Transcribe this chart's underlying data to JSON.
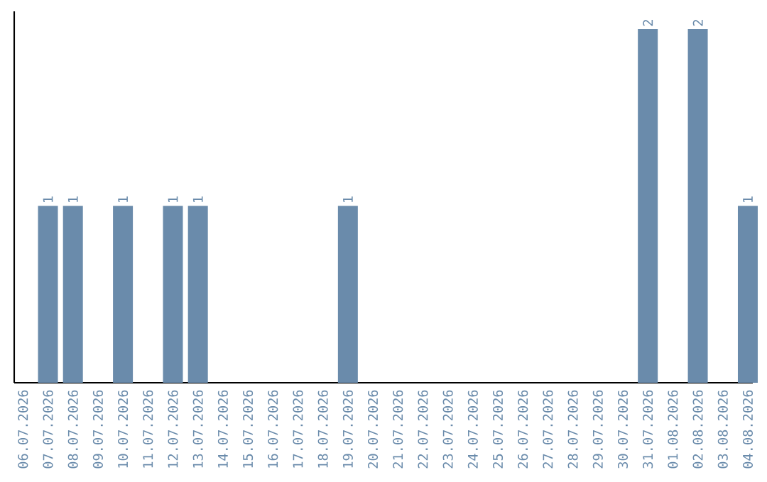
{
  "chart_data": {
    "type": "bar",
    "categories": [
      "06.07.2026",
      "07.07.2026",
      "08.07.2026",
      "09.07.2026",
      "10.07.2026",
      "11.07.2026",
      "12.07.2026",
      "13.07.2026",
      "14.07.2026",
      "15.07.2026",
      "16.07.2026",
      "17.07.2026",
      "18.07.2026",
      "19.07.2026",
      "20.07.2026",
      "21.07.2026",
      "22.07.2026",
      "23.07.2026",
      "24.07.2026",
      "25.07.2026",
      "26.07.2026",
      "27.07.2026",
      "28.07.2026",
      "29.07.2026",
      "30.07.2026",
      "31.07.2026",
      "01.08.2026",
      "02.08.2026",
      "03.08.2026",
      "04.08.2026"
    ],
    "values": [
      0,
      1,
      1,
      0,
      1,
      0,
      1,
      1,
      0,
      0,
      0,
      0,
      0,
      1,
      0,
      0,
      0,
      0,
      0,
      0,
      0,
      0,
      0,
      0,
      0,
      2,
      0,
      2,
      0,
      1
    ],
    "value_labels": [
      null,
      "1",
      "1",
      null,
      "1",
      null,
      "1",
      "1",
      null,
      null,
      null,
      null,
      null,
      "1",
      null,
      null,
      null,
      null,
      null,
      null,
      null,
      null,
      null,
      null,
      null,
      "2",
      null,
      "2",
      null,
      "1"
    ],
    "color": "#6a8bab",
    "ylim": [
      0,
      2.1
    ],
    "tick_labels": "x"
  }
}
